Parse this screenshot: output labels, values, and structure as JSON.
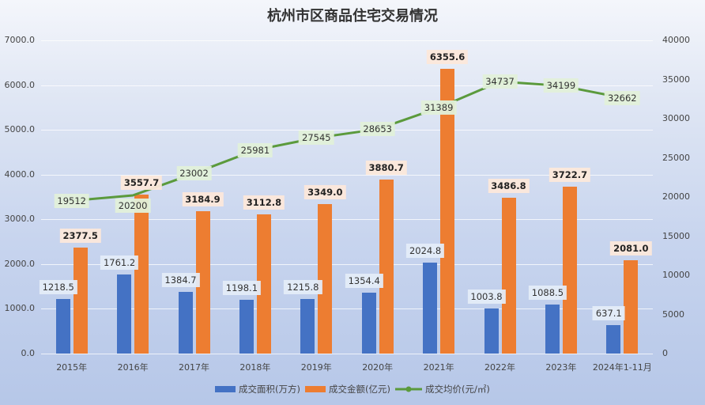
{
  "chart_data": {
    "type": "bar",
    "title": "杭州市区商品住宅交易情况",
    "categories": [
      "2015年",
      "2016年",
      "2017年",
      "2018年",
      "2019年",
      "2020年",
      "2021年",
      "2022年",
      "2023年",
      "2024年1-11月"
    ],
    "series": [
      {
        "name": "成交面积(万方)",
        "type": "bar",
        "axis": "left",
        "color": "#4472c4",
        "values": [
          1218.5,
          1761.2,
          1384.7,
          1198.1,
          1215.8,
          1354.4,
          2024.8,
          1003.8,
          1088.5,
          637.1
        ],
        "labels": [
          "1218.5",
          "1761.2",
          "1384.7",
          "1198.1",
          "1215.8",
          "1354.4",
          "2024.8",
          "1003.8",
          "1088.5",
          "637.1"
        ]
      },
      {
        "name": "成交金额(亿元)",
        "type": "bar",
        "axis": "left",
        "color": "#ed7d31",
        "values": [
          2377.5,
          3557.7,
          3184.9,
          3112.8,
          3349.0,
          3880.7,
          6355.6,
          3486.8,
          3722.7,
          2081.0
        ],
        "labels": [
          "2377.5",
          "3557.7",
          "3184.9",
          "3112.8",
          "3349.0",
          "3880.7",
          "6355.6",
          "3486.8",
          "3722.7",
          "2081.0"
        ]
      },
      {
        "name": "成交均价(元/㎡)",
        "type": "line",
        "axis": "right",
        "color": "#5b9a3c",
        "values": [
          19512,
          20200,
          23002,
          25981,
          27545,
          28653,
          31389,
          34737,
          34199,
          32662
        ],
        "labels": [
          "19512",
          "20200",
          "23002",
          "25981",
          "27545",
          "28653",
          "31389",
          "34737",
          "34199",
          "32662"
        ]
      }
    ],
    "left_axis": {
      "range": [
        0,
        7000
      ],
      "ticks": [
        "0.0",
        "1000.0",
        "2000.0",
        "3000.0",
        "4000.0",
        "5000.0",
        "6000.0",
        "7000.0"
      ]
    },
    "right_axis": {
      "range": [
        0,
        40000
      ],
      "ticks": [
        "0",
        "5000",
        "10000",
        "15000",
        "20000",
        "25000",
        "30000",
        "35000",
        "40000"
      ]
    },
    "xlabel": "",
    "ylabel": "",
    "grid": true,
    "legend_position": "bottom"
  },
  "legend": {
    "area": "成交面积(万方)",
    "amount": "成交金额(亿元)",
    "price": "成交均价(元/㎡)"
  }
}
